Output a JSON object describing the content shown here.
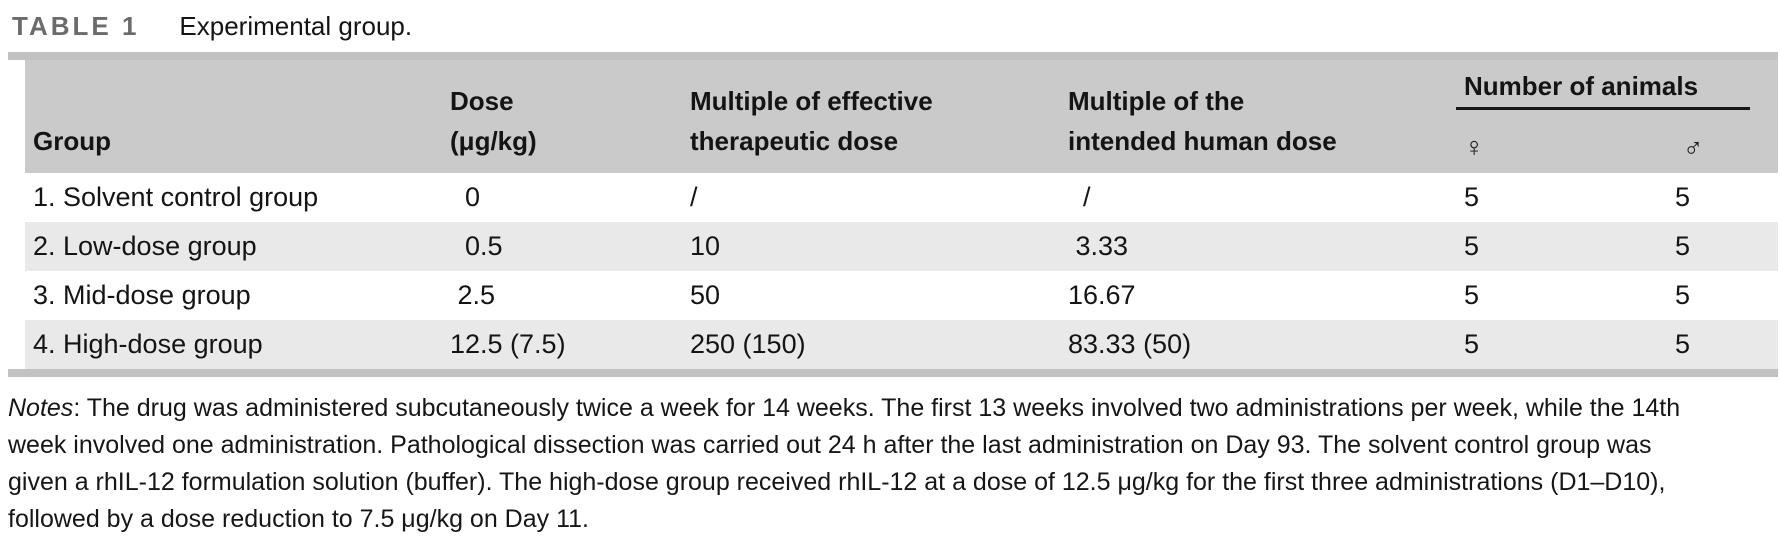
{
  "title": {
    "label": "TABLE 1",
    "caption": "Experimental group."
  },
  "table": {
    "columns": {
      "group": "Group",
      "dose": "Dose\n(μg/kg)",
      "multiple_effective": "Multiple of effective\ntherapeutic dose",
      "multiple_intended": "Multiple of the\nintended human dose",
      "number_of_animals": "Number of animals",
      "female_symbol": "♀",
      "male_symbol": "♂"
    },
    "rows": [
      {
        "group": "1. Solvent control group",
        "dose": "  0",
        "multiple_effective": "/",
        "multiple_intended": "  /",
        "female": "5",
        "male": "5"
      },
      {
        "group": "2. Low-dose group",
        "dose": "  0.5",
        "multiple_effective": "10",
        "multiple_intended": " 3.33",
        "female": "5",
        "male": "5"
      },
      {
        "group": "3. Mid-dose group",
        "dose": " 2.5",
        "multiple_effective": "50",
        "multiple_intended": "16.67",
        "female": "5",
        "male": "5"
      },
      {
        "group": "4. High-dose group",
        "dose": "12.5 (7.5)",
        "multiple_effective": "250 (150)",
        "multiple_intended": "83.33 (50)",
        "female": "5",
        "male": "5"
      }
    ]
  },
  "notes": {
    "label": "Notes",
    "body": ": The drug was administered subcutaneously twice a week for 14 weeks. The first 13 weeks involved two administrations per week, while the 14th\nweek involved one administration. Pathological dissection was carried out 24 h after the last administration on Day 93. The solvent control group was\ngiven a rhIL-12 formulation solution (buffer). The high-dose group received rhIL-12 at a dose of 12.5 μg/kg for the first three administrations (D1–D10),\nfollowed by a dose reduction to 7.5 μg/kg on Day 11."
  },
  "colors": {
    "header_bg": "#cacaca",
    "stripe_bg": "#e9e9e9",
    "rule": "#c2c2c2",
    "title_label": "#6b6b6b",
    "underline": "#161616"
  }
}
